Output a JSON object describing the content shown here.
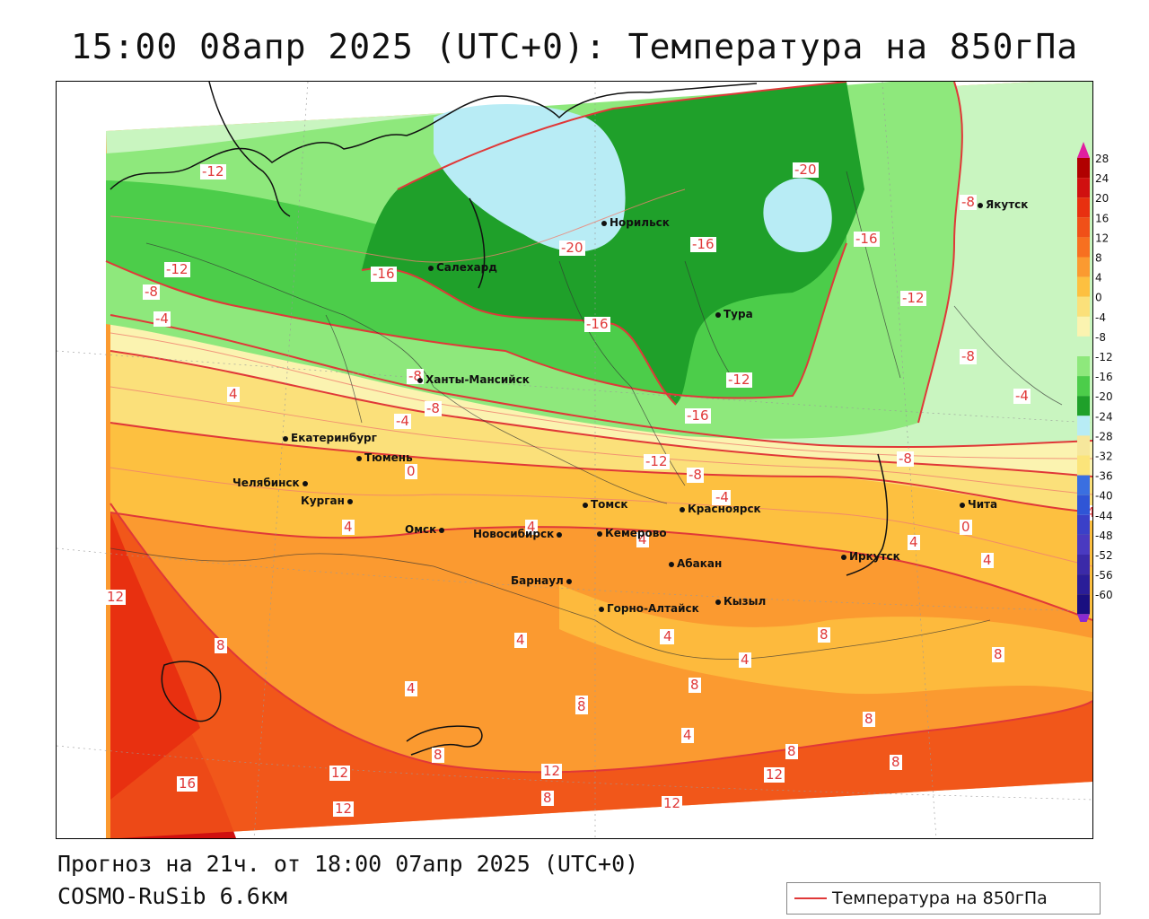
{
  "title": "15:00 08апр 2025 (UTC+0): Температура на 850гПа",
  "footer": {
    "forecast": "Прогноз на 21ч. от 18:00 07апр 2025 (UTC+0)",
    "model": "COSMO-RuSib 6.6км"
  },
  "legend": {
    "label": "Температура на 850гПа",
    "line_color": "#e03838"
  },
  "color_scale": {
    "labels": [
      "28",
      "24",
      "20",
      "16",
      "12",
      "8",
      "4",
      "0",
      "-4",
      "-8",
      "-12",
      "-16",
      "-20",
      "-24",
      "-28",
      "-32",
      "-36",
      "-40",
      "-44",
      "-48",
      "-52",
      "-56",
      "-60"
    ],
    "colors": [
      "#b00000",
      "#d01010",
      "#e83010",
      "#f05018",
      "#f77020",
      "#fb9a30",
      "#fdc040",
      "#fbe07a",
      "#fbf3b0",
      "#c9f5c0",
      "#8ee87c",
      "#4ccd4a",
      "#1fa02a",
      "#b8ecf5",
      "#f6e79c",
      "#fbe47a",
      "#3a6fe0",
      "#2f55d6",
      "#3a40c8",
      "#4a3ac0",
      "#3b2aa8",
      "#2a1d98",
      "#1a0f80"
    ],
    "top_arrow_color": "#e020a0",
    "bottom_arrow_color": "#8a2ad0"
  },
  "cities": [
    {
      "name": "Якутск"
    },
    {
      "name": "Норильск"
    },
    {
      "name": "Салехард"
    },
    {
      "name": "Тура"
    },
    {
      "name": "Ханты-Мансийск"
    },
    {
      "name": "Екатеринбург"
    },
    {
      "name": "Тюмень"
    },
    {
      "name": "Челябинск"
    },
    {
      "name": "Курган"
    },
    {
      "name": "Омск"
    },
    {
      "name": "Новосибирск"
    },
    {
      "name": "Томск"
    },
    {
      "name": "Кемерово"
    },
    {
      "name": "Красноярск"
    },
    {
      "name": "Барнаул"
    },
    {
      "name": "Абакан"
    },
    {
      "name": "Горно-Алтайск"
    },
    {
      "name": "Кызыл"
    },
    {
      "name": "Иркутск"
    },
    {
      "name": "Чита"
    }
  ],
  "isotherm_labels": [
    "-12",
    "-20",
    "-16",
    "-16",
    "-8",
    "-12",
    "-8",
    "-4",
    "-16",
    "-20",
    "-16",
    "-12",
    "-12",
    "-8",
    "-8",
    "-16",
    "-4",
    "-4",
    "-8",
    "-12",
    "-8",
    "-4",
    "-8",
    "4",
    "0",
    "4",
    "4",
    "4",
    "0",
    "-4",
    "4",
    "12",
    "8",
    "4",
    "8",
    "4",
    "8",
    "4",
    "8",
    "4",
    "8",
    "8",
    "8",
    "4",
    "8",
    "8",
    "12",
    "12",
    "8",
    "12",
    "16",
    "12",
    "12",
    "8",
    "4",
    "-4",
    "4"
  ]
}
